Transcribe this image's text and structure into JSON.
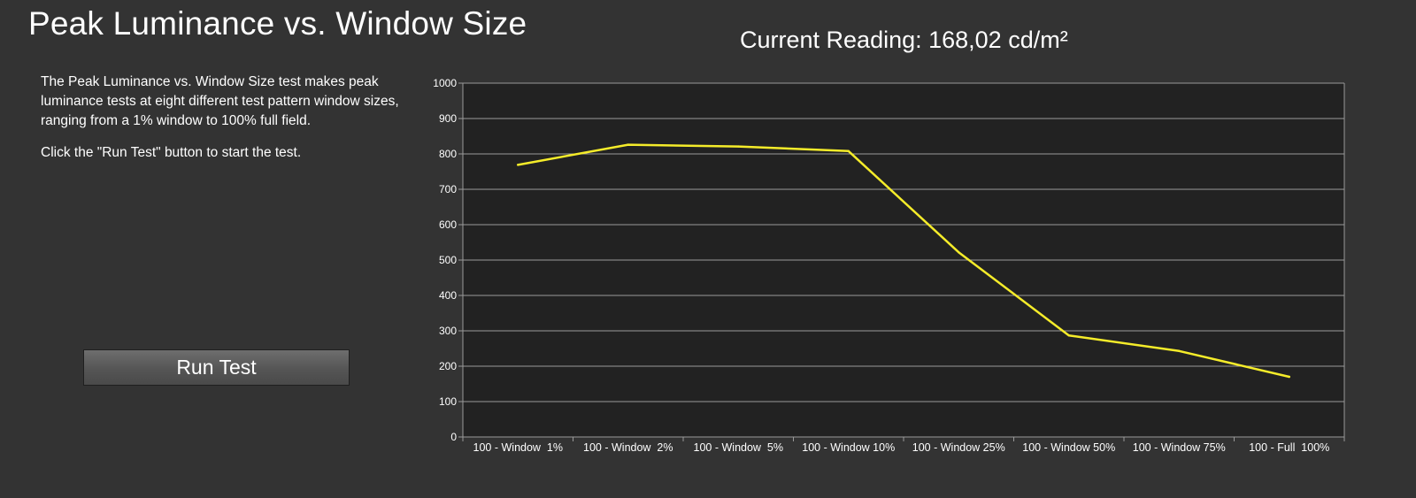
{
  "header": {
    "title": "Peak Luminance vs. Window Size",
    "current_reading": "Current Reading: 168,02 cd/m²"
  },
  "description": {
    "paragraph_1": "The Peak Luminance vs. Window Size test makes peak luminance tests at eight different test pattern window sizes, ranging from a 1% window to 100% full field.",
    "paragraph_2": "Click the \"Run Test\" button to start the test."
  },
  "controls": {
    "run_button_label": "Run Test"
  },
  "colors": {
    "background": "#333333",
    "plot_background": "#222222",
    "gridline": "#9a9a9a",
    "series_line": "#f5ec2a"
  },
  "chart_data": {
    "type": "line",
    "title": "",
    "xlabel": "",
    "ylabel": "",
    "ylim": [
      0,
      1000
    ],
    "y_ticks": [
      0,
      100,
      200,
      300,
      400,
      500,
      600,
      700,
      800,
      900,
      1000
    ],
    "grid": true,
    "categories": [
      "100 - Window  1%",
      "100 - Window  2%",
      "100 - Window  5%",
      "100 - Window 10%",
      "100 - Window 25%",
      "100 - Window 50%",
      "100 - Window 75%",
      "100 - Full  100%"
    ],
    "series": [
      {
        "values": [
          769,
          826,
          821,
          808,
          522,
          287,
          243,
          170
        ]
      }
    ]
  }
}
